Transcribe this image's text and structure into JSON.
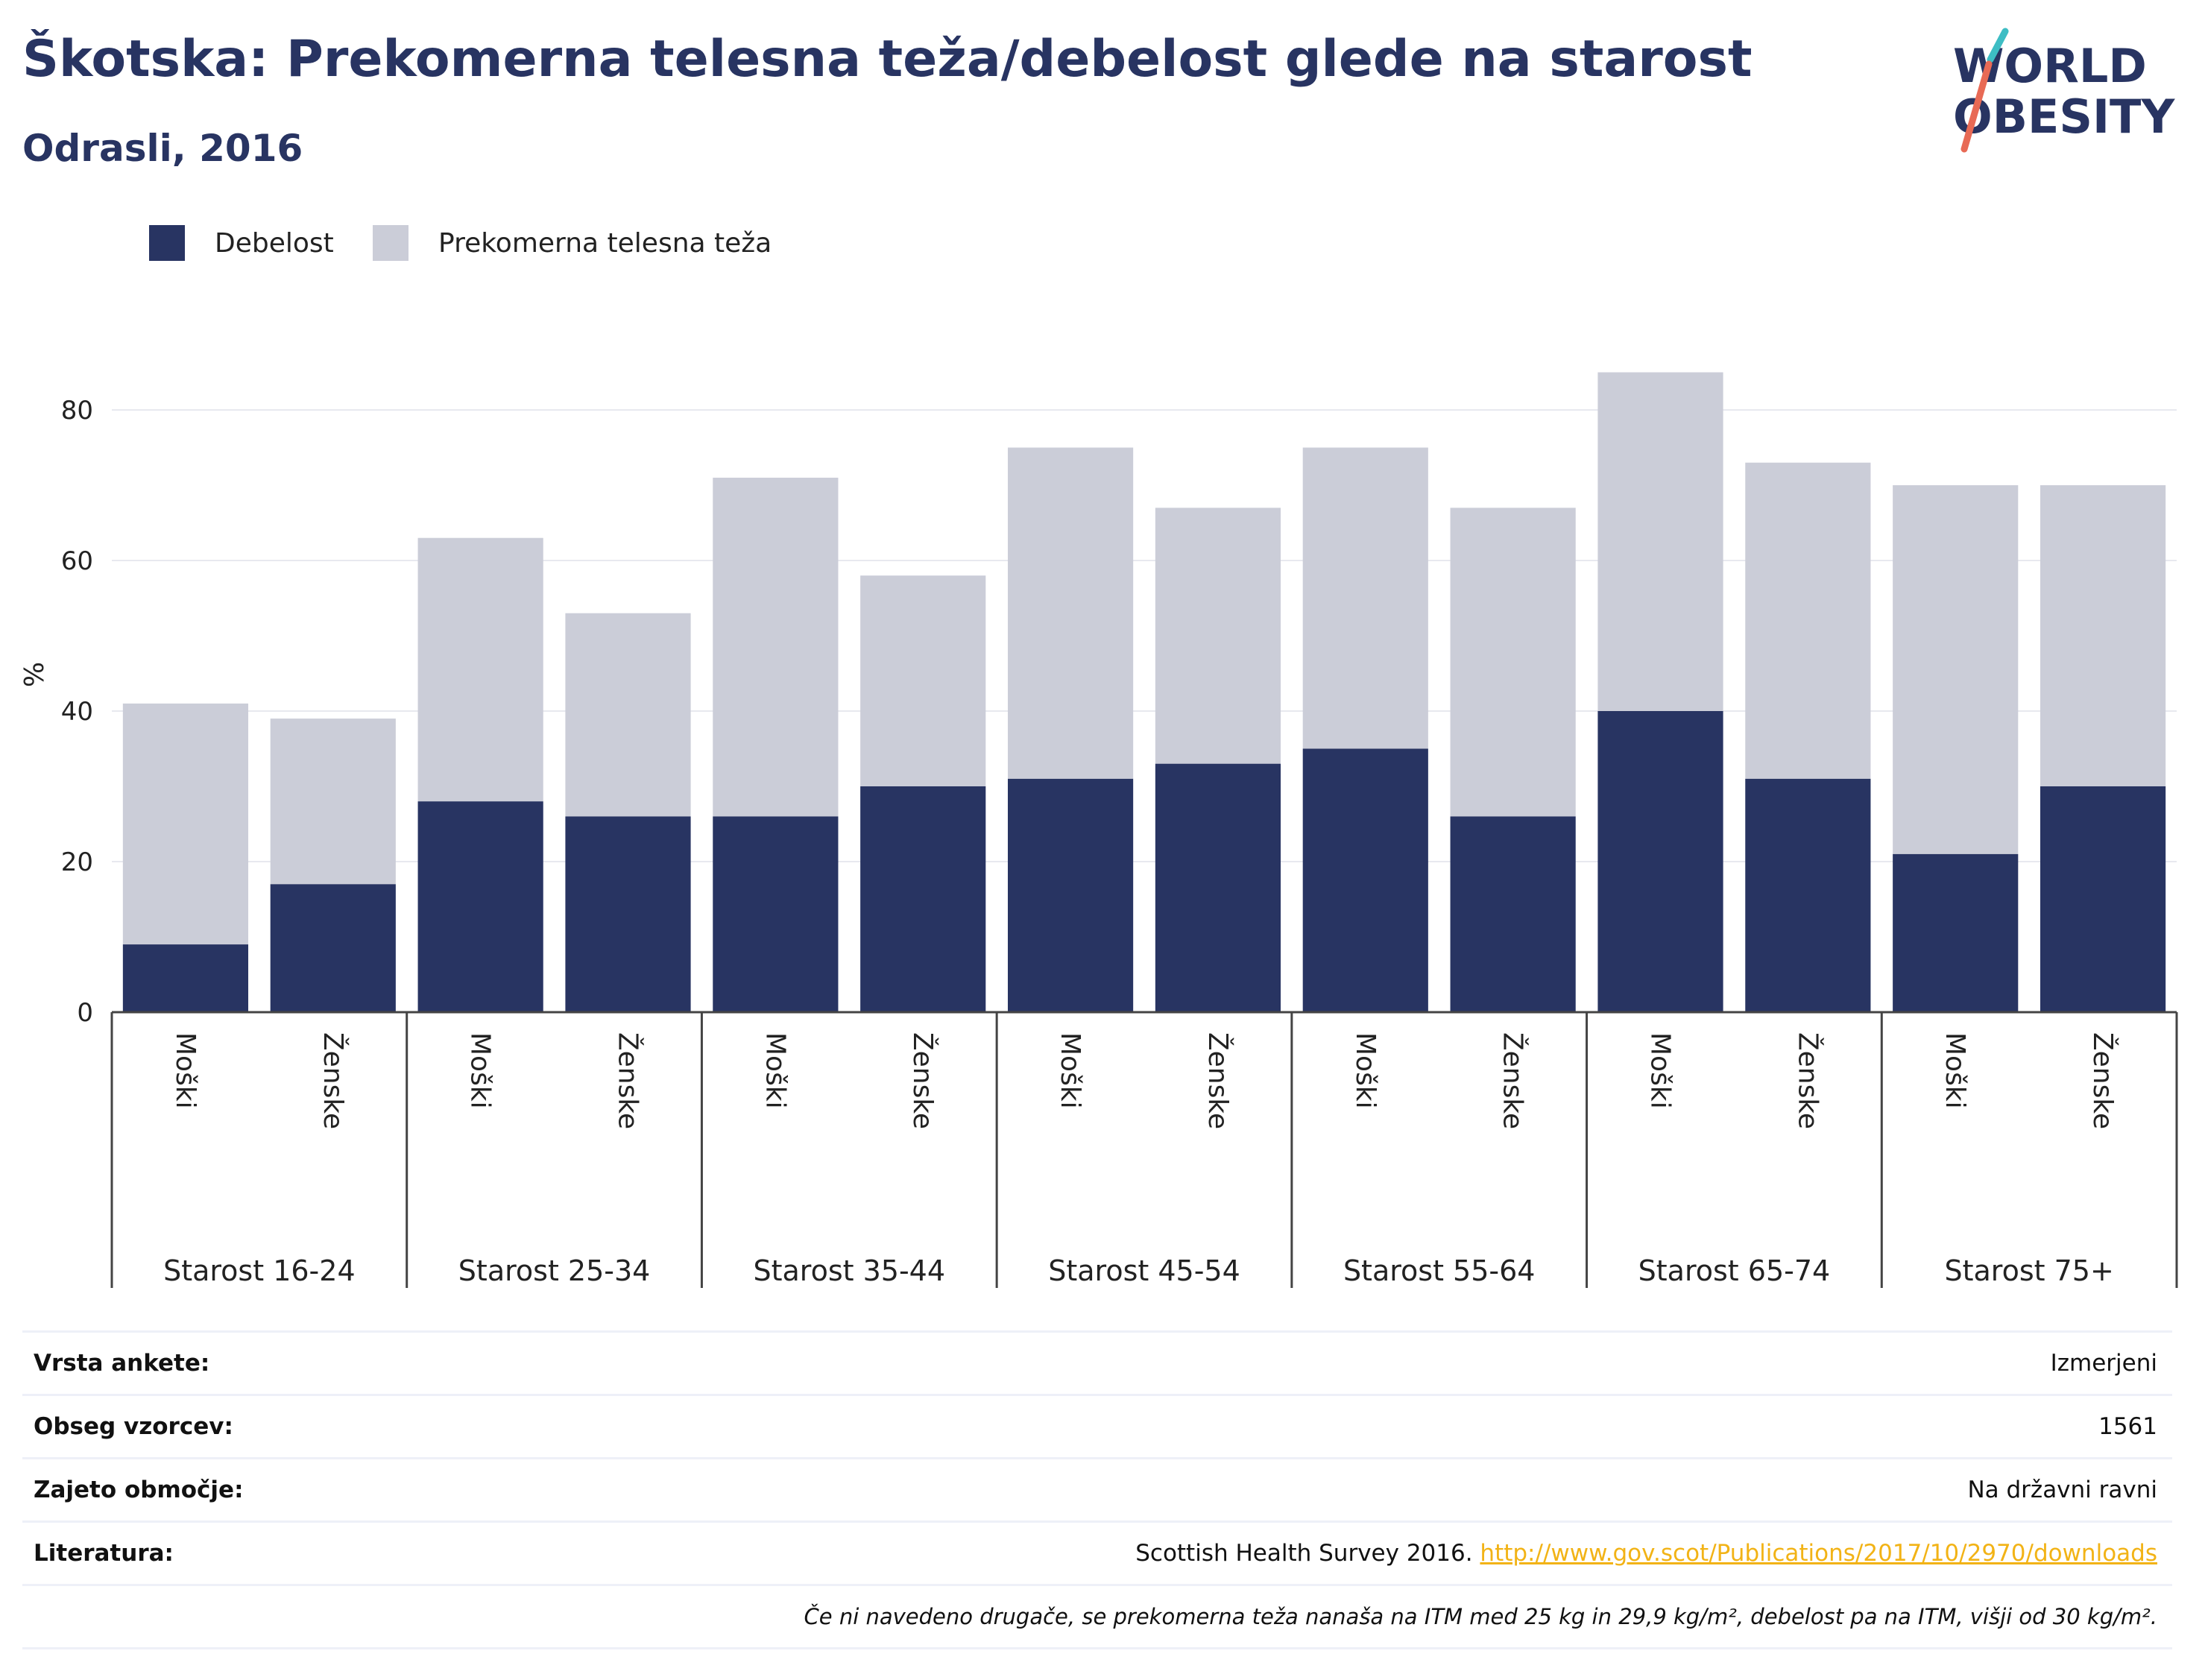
{
  "title": "Škotska: Prekomerna telesna teža/debelost glede na starost",
  "subtitle": "Odrasli, 2016",
  "logo": {
    "line1": "WORLD",
    "line2": "OBESITY"
  },
  "colors": {
    "obesity": "#283462",
    "overweight": "#cbcdd8",
    "title": "#283462",
    "link": "#f2b316"
  },
  "chart_data": {
    "type": "bar",
    "stacked": true,
    "ylabel": "%",
    "ylim": [
      0,
      90
    ],
    "yticks": [
      0,
      20,
      40,
      60,
      80
    ],
    "grid": true,
    "legend_position": "top-left",
    "groups": [
      "Starost 16-24",
      "Starost 25-34",
      "Starost 35-44",
      "Starost 45-54",
      "Starost 55-64",
      "Starost 65-74",
      "Starost 75+"
    ],
    "subcategories": [
      "Moški",
      "Ženske"
    ],
    "series": [
      {
        "name": "Debelost",
        "color": "#283462",
        "values": [
          9,
          17,
          28,
          26,
          26,
          30,
          31,
          33,
          35,
          26,
          40,
          31,
          21,
          30
        ]
      },
      {
        "name": "Prekomerna telesna teža",
        "color": "#cbcdd8",
        "values": [
          32,
          22,
          35,
          27,
          45,
          28,
          44,
          34,
          40,
          41,
          45,
          42,
          49,
          40
        ]
      }
    ]
  },
  "info": {
    "survey_label": "Vrsta ankete:",
    "survey_value": "Izmerjeni",
    "sample_label": "Obseg vzorcev:",
    "sample_value": "1561",
    "area_label": "Zajeto območje:",
    "area_value": "Na državni ravni",
    "ref_label": "Literatura:",
    "ref_text": "Scottish Health Survey 2016. ",
    "ref_link": "http://www.gov.scot/Publications/2017/10/2970/downloads",
    "note": "Če ni navedeno drugače, se prekomerna teža nanaša na ITM med 25 kg in 29,9 kg/m², debelost pa na ITM, višji od 30 kg/m²."
  }
}
